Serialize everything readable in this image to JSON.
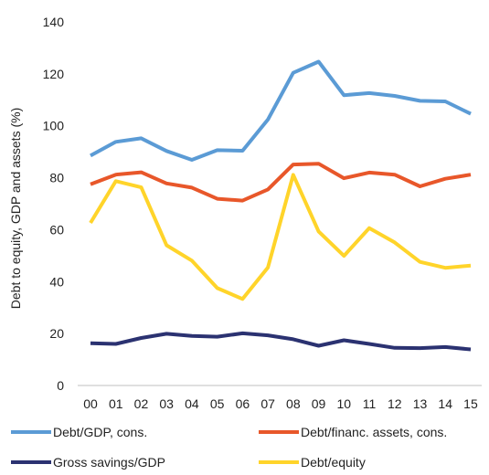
{
  "chart_data": {
    "type": "line",
    "title": "",
    "xlabel": "",
    "ylabel": "Debt to equity, GDP and assets (%)",
    "ylim": [
      0,
      140
    ],
    "yticks": [
      "0",
      "20",
      "40",
      "60",
      "80",
      "100",
      "120",
      "140"
    ],
    "categories": [
      "00",
      "01",
      "02",
      "03",
      "04",
      "05",
      "06",
      "07",
      "08",
      "09",
      "10",
      "11",
      "12",
      "13",
      "14",
      "15"
    ],
    "grid": false,
    "legend_position": "bottom",
    "series": [
      {
        "name": "Debt/GDP, cons.",
        "color": "#5b9bd5",
        "values": [
          88.5,
          93.8,
          95.2,
          90.3,
          86.9,
          90.6,
          90.4,
          102.4,
          120.4,
          124.7,
          111.8,
          112.6,
          111.5,
          109.6,
          109.4,
          104.6
        ]
      },
      {
        "name": "Debt/financ. assets, cons.",
        "color": "#e8572a",
        "values": [
          77.5,
          81.2,
          82.1,
          77.8,
          76.2,
          71.9,
          71.2,
          75.5,
          85.1,
          85.4,
          79.8,
          82.0,
          81.2,
          76.7,
          79.6,
          81.2
        ]
      },
      {
        "name": "Gross savings/GDP",
        "color": "#2b3271",
        "values": [
          16.3,
          16.0,
          18.3,
          19.9,
          19.1,
          18.8,
          20.1,
          19.3,
          17.8,
          15.3,
          17.4,
          16.0,
          14.5,
          14.4,
          14.8,
          13.9
        ]
      },
      {
        "name": "Debt/equity",
        "color": "#ffd42a",
        "values": [
          62.6,
          78.7,
          76.3,
          54.0,
          48.1,
          37.5,
          33.3,
          45.4,
          81.1,
          59.3,
          49.9,
          60.6,
          55.1,
          47.6,
          45.3,
          46.2
        ]
      }
    ]
  }
}
